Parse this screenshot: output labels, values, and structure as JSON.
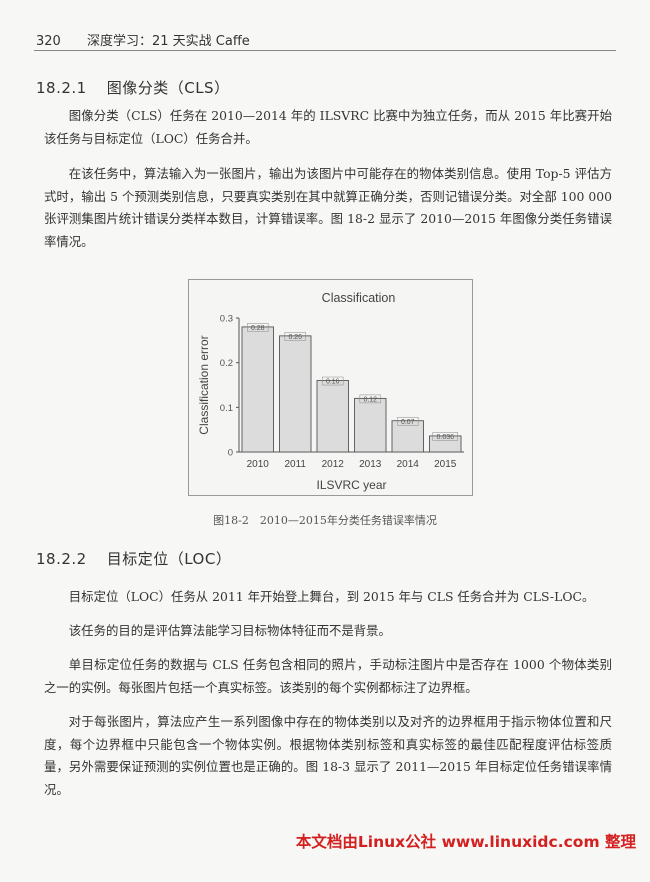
{
  "header": {
    "page_number": "320",
    "book_title": "深度学习：21 天实战 Caffe"
  },
  "sections": [
    {
      "number": "18.2.1",
      "title": "图像分类（CLS）",
      "paragraphs": [
        "图像分类（CLS）任务在 2010—2014 年的 ILSVRC 比赛中为独立任务，而从 2015 年比赛开始该任务与目标定位（LOC）任务合并。",
        "在该任务中，算法输入为一张图片，输出为该图片中可能存在的物体类别信息。使用 Top-5 评估方式时，输出 5 个预测类别信息，只要真实类别在其中就算正确分类，否则记错误分类。对全部 100 000 张评测集图片统计错误分类样本数目，计算错误率。图 18-2 显示了 2010—2015 年图像分类任务错误率情况。"
      ]
    },
    {
      "number": "18.2.2",
      "title": "目标定位（LOC）",
      "paragraphs": [
        "目标定位（LOC）任务从 2011 年开始登上舞台，到 2015 年与 CLS 任务合并为 CLS-LOC。",
        "该任务的目的是评估算法能学习目标物体特征而不是背景。",
        "单目标定位任务的数据与 CLS 任务包含相同的照片，手动标注图片中是否存在 1000 个物体类别之一的实例。每张图片包括一个真实标签。该类别的每个实例都标注了边界框。",
        "对于每张图片，算法应产生一系列图像中存在的物体类别以及对齐的边界框用于指示物体位置和尺度，每个边界框中只能包含一个物体实例。根据物体类别标签和真实标签的最佳匹配程度评估标签质量，另外需要保证预测的实例位置也是正确的。图 18-3 显示了 2011—2015 年目标定位任务错误率情况。"
      ]
    }
  ],
  "figure": {
    "caption": "图18-2　2010—2015年分类任务错误率情况"
  },
  "chart_data": {
    "type": "bar",
    "title": "Classification",
    "xlabel": "ILSVRC year",
    "ylabel": "Classification error",
    "categories": [
      "2010",
      "2011",
      "2012",
      "2013",
      "2014",
      "2015"
    ],
    "values": [
      0.28,
      0.26,
      0.16,
      0.12,
      0.07,
      0.036
    ],
    "value_labels": [
      "0.28",
      "0.26",
      "0.16",
      "0.12",
      "0.07",
      "0.036"
    ],
    "yticks": [
      "0",
      "0.1",
      "0.2",
      "0.3"
    ],
    "ylim": [
      0,
      0.3
    ],
    "bar_color": "#dcdcdc",
    "grid": false,
    "legend": false
  },
  "watermark": "本文档由Linux公社 www.linuxidc.com 整理",
  "colors": {
    "watermark": "#d32020",
    "text": "#333333"
  }
}
